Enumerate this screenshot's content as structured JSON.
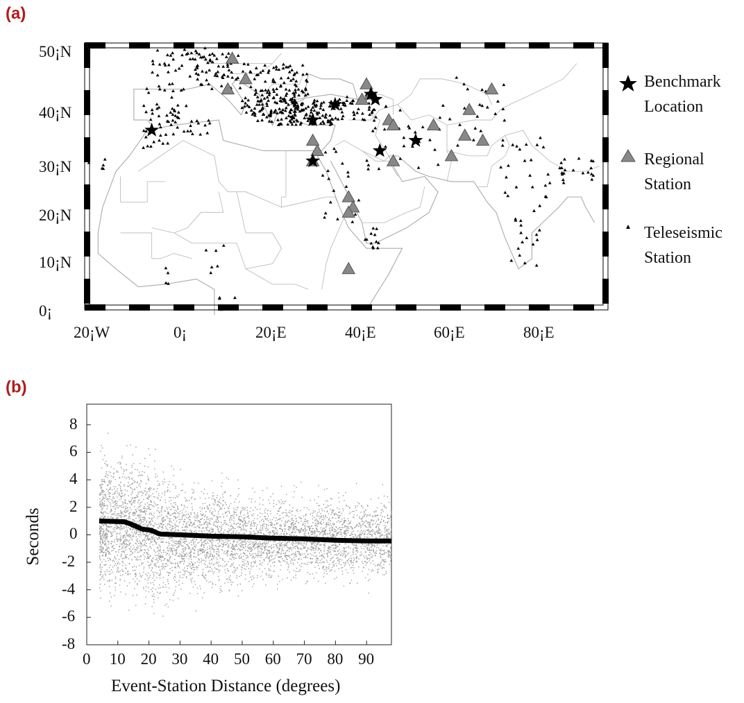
{
  "panels": {
    "a": {
      "label": "(a)"
    },
    "b": {
      "label": "(b)"
    }
  },
  "map": {
    "lat_labels": [
      "50¡N",
      "40¡N",
      "30¡N",
      "20¡N",
      "10¡N",
      "0¡"
    ],
    "lon_labels": [
      "20¡W",
      "0¡",
      "20¡E",
      "40¡E",
      "60¡E",
      "80¡E"
    ],
    "legend": [
      {
        "symbol": "star-icon",
        "line1": "Benchmark",
        "line2": "Location"
      },
      {
        "symbol": "triangle-large-icon",
        "line1": "Regional",
        "line2": "Station"
      },
      {
        "symbol": "triangle-small-icon",
        "line1": "Teleseismic",
        "line2": "Station"
      }
    ],
    "colors": {
      "regional": "#888888",
      "teleseismic": "#000000",
      "borders": "#aaaaaa",
      "frame": "#000000"
    },
    "benchmarks": [
      [
        -5,
        35
      ],
      [
        36,
        40
      ],
      [
        31,
        37
      ],
      [
        31,
        29
      ],
      [
        44,
        42
      ],
      [
        45,
        41
      ],
      [
        46,
        31
      ],
      [
        54,
        33
      ]
    ],
    "regional_stations": [
      [
        13,
        49
      ],
      [
        16,
        45
      ],
      [
        12,
        43
      ],
      [
        43,
        44
      ],
      [
        44,
        42
      ],
      [
        42,
        41
      ],
      [
        48,
        37
      ],
      [
        49,
        36
      ],
      [
        58,
        36
      ],
      [
        66,
        39
      ],
      [
        71,
        43
      ],
      [
        65,
        34
      ],
      [
        69,
        33
      ],
      [
        62,
        30
      ],
      [
        49,
        29
      ],
      [
        31,
        29
      ],
      [
        32,
        31
      ],
      [
        31,
        33
      ],
      [
        39,
        22
      ],
      [
        40,
        20
      ],
      [
        39,
        19
      ],
      [
        39,
        8
      ]
    ]
  },
  "chart_data": {
    "type": "scatter",
    "xlabel": "Event-Station Distance (degrees)",
    "ylabel": "Seconds",
    "xlim": [
      0,
      98
    ],
    "ylim": [
      -8,
      9.5
    ],
    "x_ticks": [
      "0",
      "10",
      "20",
      "30",
      "40",
      "50",
      "60",
      "70",
      "80",
      "90"
    ],
    "y_ticks": [
      "8",
      "6",
      "4",
      "2",
      "0",
      "-2",
      "-4",
      "-6",
      "-8"
    ],
    "series": [
      {
        "marker": "small-gray-dots",
        "color": "#999999",
        "x_range": [
          4,
          98
        ],
        "y_range": [
          -7.2,
          8.8
        ]
      },
      {
        "marker": "black-line",
        "color": "#000000",
        "x": [
          4,
          12,
          14,
          16,
          18,
          20,
          21,
          22,
          23,
          24,
          30,
          40,
          50,
          60,
          70,
          80,
          90,
          98
        ],
        "y": [
          1.0,
          0.95,
          0.8,
          0.6,
          0.4,
          0.35,
          0.3,
          0.2,
          0.1,
          0.05,
          0.0,
          -0.1,
          -0.15,
          -0.25,
          -0.3,
          -0.4,
          -0.45,
          -0.45
        ]
      }
    ]
  }
}
